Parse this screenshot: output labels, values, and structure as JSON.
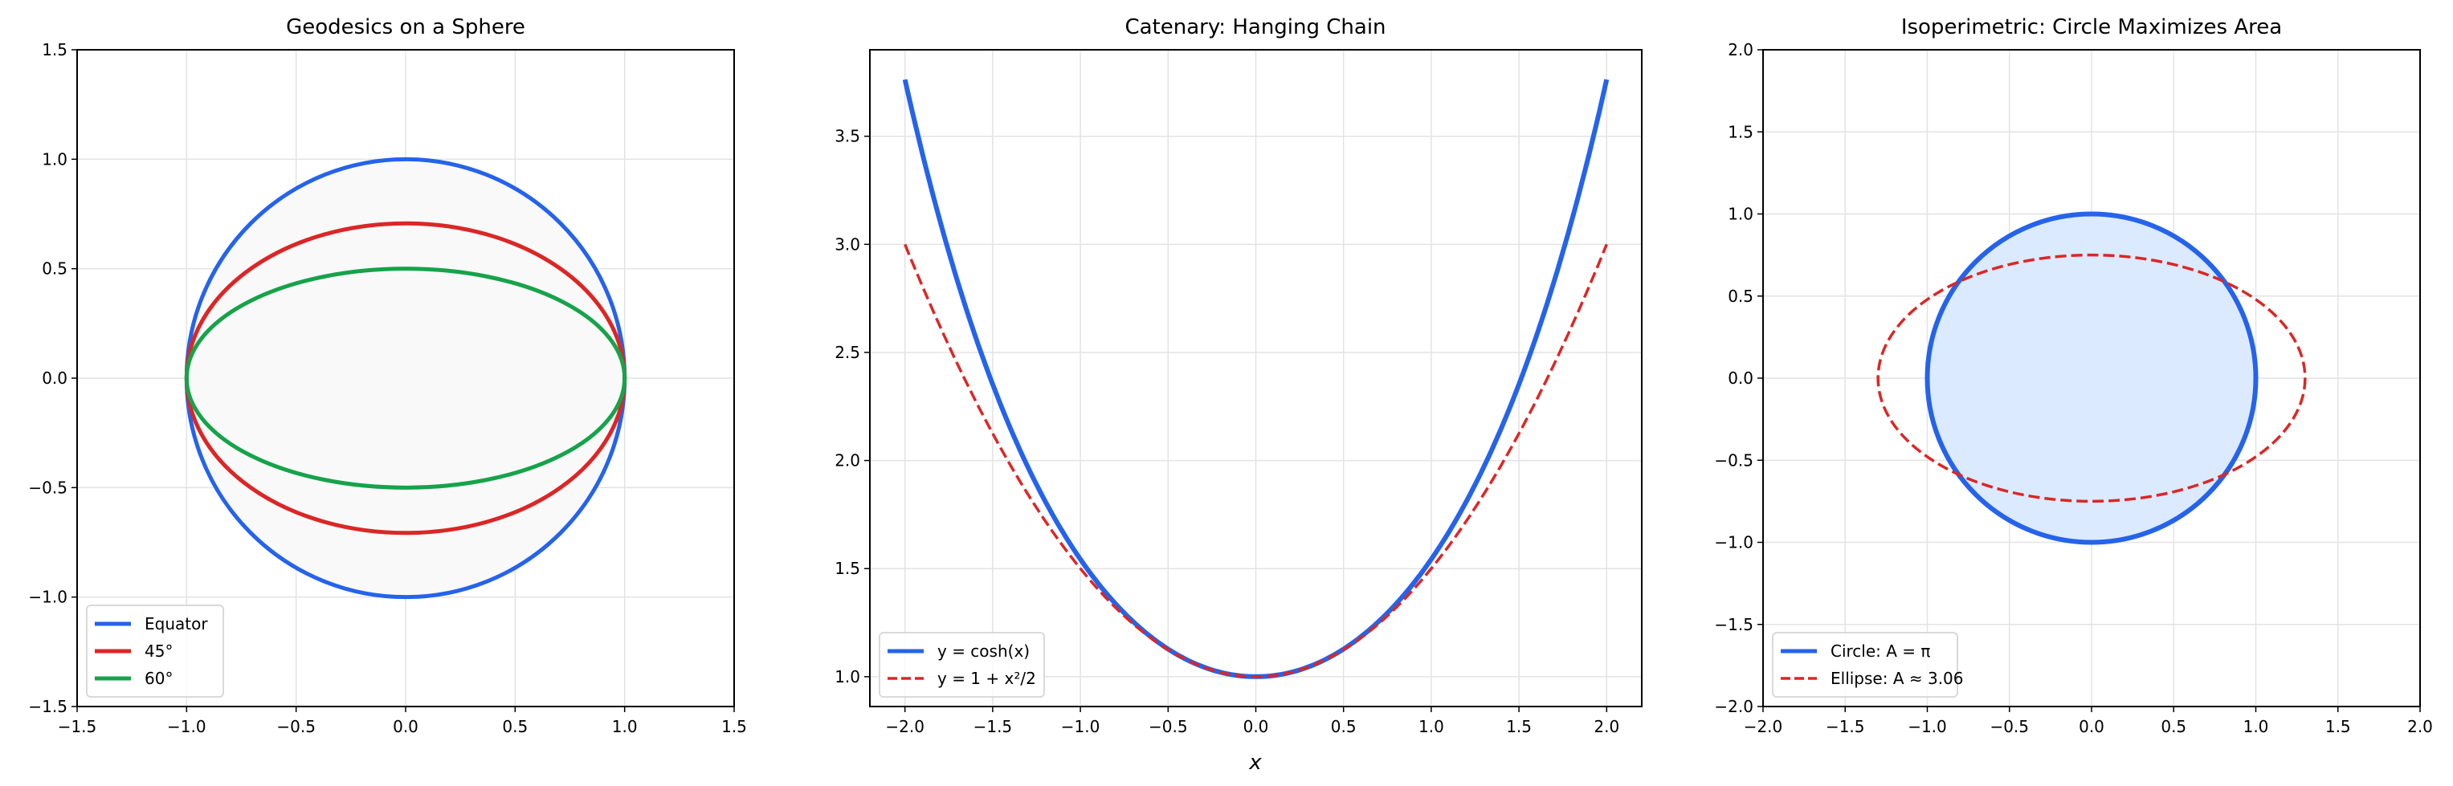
{
  "colors": {
    "blue": "#2563eb",
    "red": "#dc2626",
    "green": "#16a34a",
    "grid": "#e3e3e3",
    "sphere_fill": "#f9f9f9",
    "circle_fill": "#dbeafe"
  },
  "chart_data": [
    {
      "type": "line",
      "title": "Geodesics on a Sphere",
      "xlabel": "",
      "ylabel": "",
      "xlim": [
        -1.5,
        1.5
      ],
      "ylim": [
        -1.5,
        1.5
      ],
      "xticks": [
        "−1.5",
        "−1.0",
        "−0.5",
        "0.0",
        "0.5",
        "1.0",
        "1.5"
      ],
      "yticks": [
        "−1.5",
        "−1.0",
        "−0.5",
        "0.0",
        "0.5",
        "1.0",
        "1.5"
      ],
      "grid": true,
      "legend": "lower-left",
      "aspect": "equal",
      "series": [
        {
          "name": "Equator",
          "shape": "ellipse",
          "a": 1.0,
          "b": 1.0,
          "color": "#2563eb",
          "style": "solid"
        },
        {
          "name": "45°",
          "shape": "ellipse",
          "a": 1.0,
          "b": 0.707,
          "color": "#dc2626",
          "style": "solid"
        },
        {
          "name": "60°",
          "shape": "ellipse",
          "a": 1.0,
          "b": 0.5,
          "color": "#16a34a",
          "style": "solid"
        }
      ]
    },
    {
      "type": "line",
      "title": "Catenary: Hanging Chain",
      "xlabel": "x",
      "ylabel": "",
      "xlim": [
        -2.2,
        2.2
      ],
      "ylim": [
        0.862,
        3.9
      ],
      "xticks": [
        "−2.0",
        "−1.5",
        "−1.0",
        "−0.5",
        "0.0",
        "0.5",
        "1.0",
        "1.5",
        "2.0"
      ],
      "yticks": [
        "1.0",
        "1.5",
        "2.0",
        "2.5",
        "3.0",
        "3.5"
      ],
      "grid": true,
      "legend": "lower-left",
      "series": [
        {
          "name": "y = cosh(x)",
          "function": "cosh",
          "x_range": [
            -2,
            2
          ],
          "endpoint_y": 3.762,
          "color": "#2563eb",
          "style": "solid"
        },
        {
          "name": "y = 1 + x²/2",
          "function": "1+x^2/2",
          "x_range": [
            -2,
            2
          ],
          "endpoint_y": 3.0,
          "color": "#dc2626",
          "style": "dashed"
        }
      ]
    },
    {
      "type": "line",
      "title": "Isoperimetric: Circle Maximizes Area",
      "xlabel": "",
      "ylabel": "",
      "xlim": [
        -2.0,
        2.0
      ],
      "ylim": [
        -2.0,
        2.0
      ],
      "xticks": [
        "−2.0",
        "−1.5",
        "−1.0",
        "−0.5",
        "0.0",
        "0.5",
        "1.0",
        "1.5",
        "2.0"
      ],
      "yticks": [
        "−2.0",
        "−1.5",
        "−1.0",
        "−0.5",
        "0.0",
        "0.5",
        "1.0",
        "1.5",
        "2.0"
      ],
      "grid": true,
      "legend": "lower-left",
      "aspect": "equal",
      "series": [
        {
          "name": "Circle: A = π",
          "shape": "ellipse",
          "a": 1.0,
          "b": 1.0,
          "color": "#2563eb",
          "style": "solid",
          "filled": true
        },
        {
          "name": "Ellipse: A ≈ 3.06",
          "shape": "ellipse",
          "a": 1.3,
          "b": 0.75,
          "color": "#dc2626",
          "style": "dashed"
        }
      ]
    }
  ]
}
